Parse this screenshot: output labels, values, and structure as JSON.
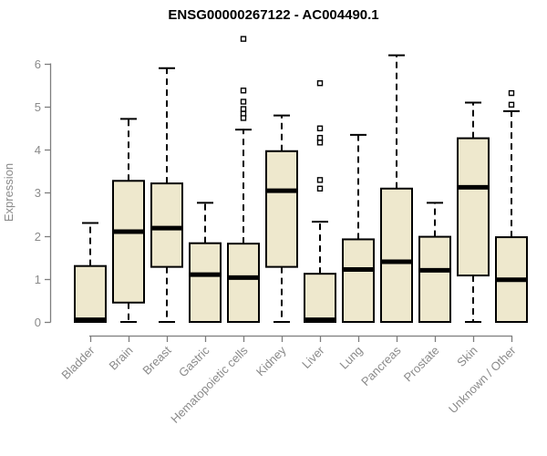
{
  "chart_data": {
    "type": "box",
    "title": "ENSG00000267122 - AC004490.1",
    "ylabel": "Expression",
    "xlabel": "",
    "ylim": [
      0,
      6.7
    ],
    "y_ticks": [
      0,
      1,
      2,
      3,
      4,
      5,
      6
    ],
    "grid": false,
    "legend": null,
    "categories": [
      "Bladder",
      "Brain",
      "Breast",
      "Gastric",
      "Hematopoietic cells",
      "Kidney",
      "Liver",
      "Lung",
      "Pancreas",
      "Prostate",
      "Skin",
      "Unknown / Other"
    ],
    "series": [
      {
        "category": "Bladder",
        "whisker_low": 0,
        "q1": 0,
        "median": 0.05,
        "q3": 1.3,
        "whisker_high": 2.3,
        "outliers": []
      },
      {
        "category": "Brain",
        "whisker_low": 0,
        "q1": 0.45,
        "median": 2.1,
        "q3": 3.28,
        "whisker_high": 4.72,
        "outliers": []
      },
      {
        "category": "Breast",
        "whisker_low": 0,
        "q1": 1.28,
        "median": 2.18,
        "q3": 3.22,
        "whisker_high": 5.9,
        "outliers": []
      },
      {
        "category": "Gastric",
        "whisker_low": 0,
        "q1": 0,
        "median": 1.1,
        "q3": 1.83,
        "whisker_high": 2.77,
        "outliers": []
      },
      {
        "category": "Hematopoietic cells",
        "whisker_low": 0,
        "q1": 0,
        "median": 1.03,
        "q3": 1.82,
        "whisker_high": 4.47,
        "outliers": [
          6.58,
          5.38,
          5.12,
          4.95,
          4.84,
          4.74
        ]
      },
      {
        "category": "Kidney",
        "whisker_low": 0,
        "q1": 1.28,
        "median": 3.05,
        "q3": 3.97,
        "whisker_high": 4.8,
        "outliers": []
      },
      {
        "category": "Liver",
        "whisker_low": 0,
        "q1": 0,
        "median": 0.05,
        "q3": 1.12,
        "whisker_high": 2.33,
        "outliers": [
          5.55,
          4.5,
          4.28,
          4.17,
          3.3,
          3.1
        ]
      },
      {
        "category": "Lung",
        "whisker_low": 0,
        "q1": 0,
        "median": 1.22,
        "q3": 1.92,
        "whisker_high": 4.35,
        "outliers": []
      },
      {
        "category": "Pancreas",
        "whisker_low": 0,
        "q1": 0,
        "median": 1.4,
        "q3": 3.1,
        "whisker_high": 6.2,
        "outliers": []
      },
      {
        "category": "Prostate",
        "whisker_low": 0,
        "q1": 0,
        "median": 1.2,
        "q3": 1.98,
        "whisker_high": 2.77,
        "outliers": []
      },
      {
        "category": "Skin",
        "whisker_low": 0,
        "q1": 1.08,
        "median": 3.13,
        "q3": 4.27,
        "whisker_high": 5.1,
        "outliers": []
      },
      {
        "category": "Unknown / Other",
        "whisker_low": 0,
        "q1": 0,
        "median": 0.98,
        "q3": 1.97,
        "whisker_high": 4.9,
        "outliers": [
          5.32,
          5.05
        ]
      }
    ],
    "colors": {
      "box_fill": "#EEE8CD",
      "box_border": "#000000",
      "median": "#000000",
      "whisker": "#000000",
      "outlier_stroke": "#000000",
      "outlier_fill": "#FFFFFF",
      "axis": "#7D7D7D",
      "tick_text": "#8A8A8A",
      "title_text": "#000000",
      "background": "#FFFFFF"
    }
  }
}
